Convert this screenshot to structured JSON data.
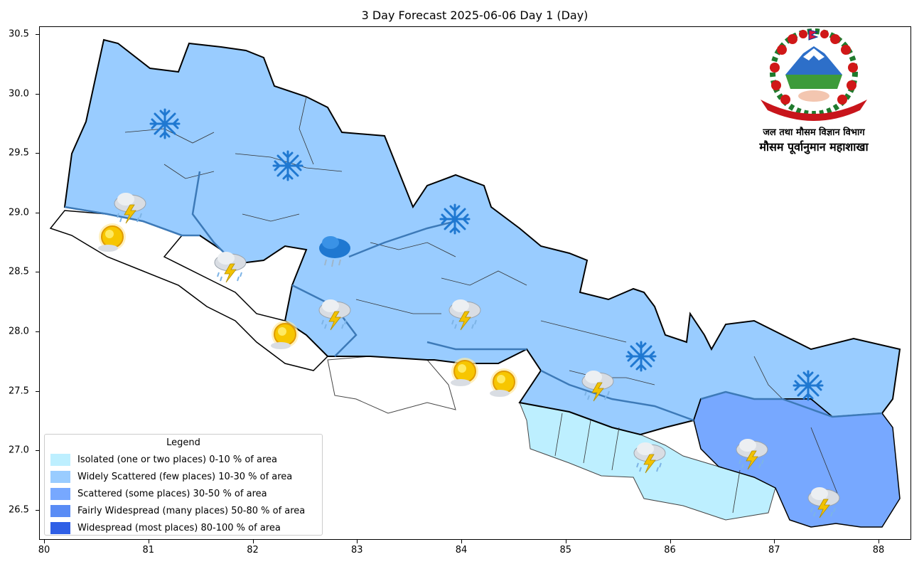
{
  "title": "3 Day Forecast 2025-06-06 Day 1 (Day)",
  "x_ticks": [
    "80",
    "81",
    "82",
    "83",
    "84",
    "85",
    "86",
    "87",
    "88"
  ],
  "y_ticks": [
    "30.5",
    "30.0",
    "29.5",
    "29.0",
    "28.5",
    "28.0",
    "27.5",
    "27.0",
    "26.5"
  ],
  "legend": {
    "title": "Legend",
    "items": [
      {
        "label": "Isolated (one or two places)  0-10 % of area",
        "color": "#bdefff"
      },
      {
        "label": "Widely Scattered (few places) 10-30 % of area",
        "color": "#99ccff"
      },
      {
        "label": "Scattered (some places) 30-50  % of area",
        "color": "#77a8ff"
      },
      {
        "label": "Fairly Widespread (many places) 50-80 % of area",
        "color": "#5a8cf5"
      },
      {
        "label": "Widespread (most places) 80-100 % of area",
        "color": "#2f5fe6"
      }
    ]
  },
  "branding": {
    "org_name": "जल तथा मौसम विज्ञान विभाग",
    "dept_name": "मौसम पूर्वानुमान महाशाखा"
  },
  "icons": [
    {
      "type": "snow-icon",
      "lon": 81.15,
      "lat": 29.75
    },
    {
      "type": "snow-icon",
      "lon": 82.33,
      "lat": 29.4
    },
    {
      "type": "snow-icon",
      "lon": 83.93,
      "lat": 28.95
    },
    {
      "type": "snow-icon",
      "lon": 85.72,
      "lat": 27.8
    },
    {
      "type": "snow-icon",
      "lon": 87.32,
      "lat": 27.55
    },
    {
      "type": "thunderstorm-icon",
      "lon": 80.82,
      "lat": 29.05
    },
    {
      "type": "thunderstorm-icon",
      "lon": 81.78,
      "lat": 28.55
    },
    {
      "type": "thunderstorm-icon",
      "lon": 82.78,
      "lat": 28.15
    },
    {
      "type": "thunderstorm-icon",
      "lon": 84.03,
      "lat": 28.15
    },
    {
      "type": "thunderstorm-icon",
      "lon": 85.3,
      "lat": 27.55
    },
    {
      "type": "thunderstorm-icon",
      "lon": 85.8,
      "lat": 26.95
    },
    {
      "type": "thunderstorm-icon",
      "lon": 86.78,
      "lat": 26.98
    },
    {
      "type": "thunderstorm-icon",
      "lon": 87.47,
      "lat": 26.57
    },
    {
      "type": "rain-icon",
      "lon": 82.78,
      "lat": 28.68
    },
    {
      "type": "sunny-icon",
      "lon": 80.65,
      "lat": 28.8
    },
    {
      "type": "sunny-icon",
      "lon": 82.3,
      "lat": 27.98
    },
    {
      "type": "sunny-icon",
      "lon": 84.03,
      "lat": 27.67
    },
    {
      "type": "sunny-icon",
      "lon": 84.4,
      "lat": 27.58
    }
  ]
}
